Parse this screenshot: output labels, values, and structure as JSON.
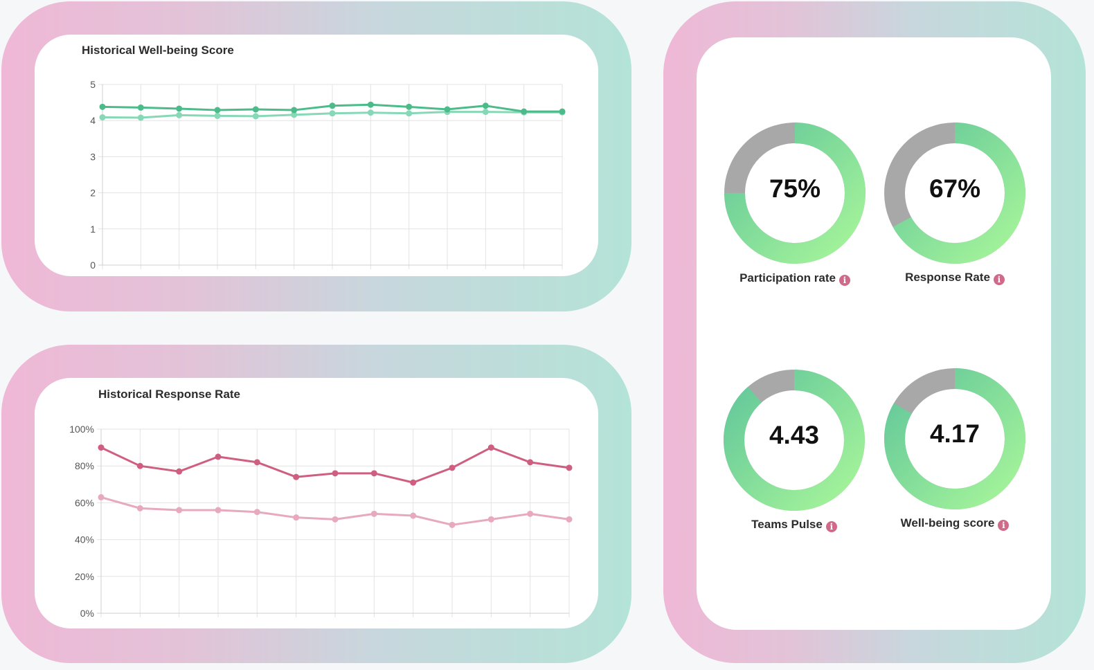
{
  "colors": {
    "wb_series_a": "#4cbb8a",
    "wb_series_b": "#86d8b6",
    "rr_series_a": "#cf5f81",
    "rr_series_b": "#e7a9bd",
    "gauge_track": "#a8a8a8",
    "gauge_fill_start": "#a7f59a",
    "gauge_fill_end": "#62c79a",
    "info_icon": "#d06a8a"
  },
  "chart_data": [
    {
      "type": "line",
      "title": "Historical Well-being Score",
      "x": [
        1,
        2,
        3,
        4,
        5,
        6,
        7,
        8,
        9,
        10,
        11,
        12,
        13
      ],
      "ylim": [
        0,
        5
      ],
      "yticks": [
        "0",
        "1",
        "2",
        "3",
        "4",
        "5"
      ],
      "grid": true,
      "series": [
        {
          "values": [
            4.38,
            4.36,
            4.33,
            4.29,
            4.31,
            4.29,
            4.41,
            4.44,
            4.38,
            4.31,
            4.41,
            4.25,
            4.25
          ]
        },
        {
          "values": [
            4.09,
            4.08,
            4.15,
            4.13,
            4.12,
            4.16,
            4.2,
            4.22,
            4.2,
            4.24,
            4.24,
            4.23,
            4.23
          ]
        }
      ]
    },
    {
      "type": "line",
      "title": "Historical Response Rate",
      "x": [
        1,
        2,
        3,
        4,
        5,
        6,
        7,
        8,
        9,
        10,
        11,
        12,
        13
      ],
      "ylim": [
        0,
        100
      ],
      "yticks": [
        "0%",
        "20%",
        "40%",
        "60%",
        "80%",
        "100%"
      ],
      "grid": true,
      "series": [
        {
          "values": [
            90,
            80,
            77,
            85,
            82,
            74,
            76,
            76,
            71,
            79,
            90,
            82,
            79
          ]
        },
        {
          "values": [
            63,
            57,
            56,
            56,
            55,
            52,
            51,
            54,
            53,
            48,
            51,
            54,
            51
          ]
        }
      ]
    }
  ],
  "kpis": [
    {
      "value": "75%",
      "label": "Participation rate",
      "fraction": 0.75
    },
    {
      "value": "67%",
      "label": "Response Rate",
      "fraction": 0.67
    },
    {
      "value": "4.43",
      "label": "Teams Pulse",
      "fraction": 0.886
    },
    {
      "value": "4.17",
      "label": "Well-being score",
      "fraction": 0.834
    }
  ],
  "info_glyph": "i"
}
